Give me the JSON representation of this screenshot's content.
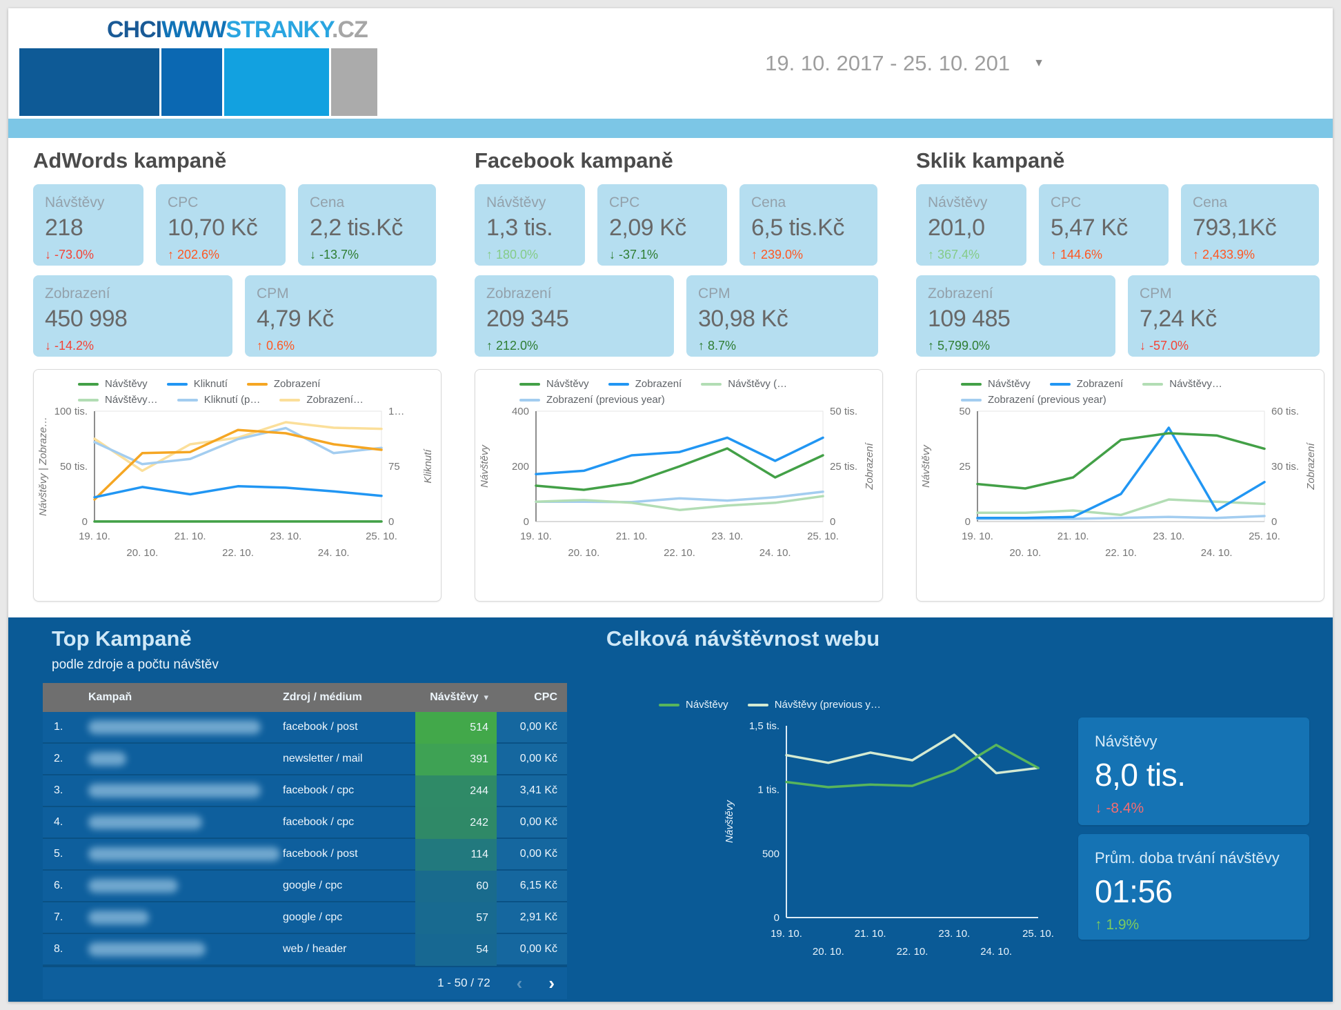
{
  "palette": {
    "band_blue": "#7cc6e6",
    "kpi_card_bg": "#b5def0",
    "dark_section_bg": "#0a5a96",
    "dark_card_bg": "#1573b4",
    "table_header_bg": "#6f6f6f",
    "table_row_bg": "#0e5f9d",
    "delta_red": "#f44336",
    "delta_orange": "#ff5722",
    "delta_green": "#2e7d32",
    "delta_lightgreen": "#85cb89",
    "delta_salmon": "#f26d72",
    "delta_limegreen": "#7ccb5f",
    "series_green": "#43a047",
    "series_blue": "#2196f3",
    "series_orange": "#f5a623",
    "series_lightgreen": "#b2ddb4",
    "series_lightblue": "#a3cdf0",
    "series_lightyellow": "#fbdf9a",
    "traffic_green": "#58b55c",
    "traffic_lightgreen": "#d4ead2"
  },
  "header": {
    "logo_segments": [
      {
        "text": "CHCI",
        "color": "#1a5a96"
      },
      {
        "text": "WWW",
        "color": "#1173b7"
      },
      {
        "text": "STRANKY",
        "color": "#2aa5e0"
      },
      {
        "text": ".CZ",
        "color": "#a6a6a6"
      }
    ],
    "color_blocks": [
      "#0e5a96",
      "#0b68b2",
      "#12a1e0",
      "#ababab"
    ],
    "date_range": "19. 10. 2017 - 25. 10. 201"
  },
  "sections": [
    {
      "title": "AdWords kampaně",
      "chart_id": "adwords_chart",
      "kpis": [
        {
          "label": "Návštěvy",
          "value": "218",
          "delta": "-73.0%",
          "dir": "down",
          "tone": "red"
        },
        {
          "label": "CPC",
          "value": "10,70 Kč",
          "delta": "202.6%",
          "dir": "up",
          "tone": "orange"
        },
        {
          "label": "Cena",
          "value": "2,2 tis.Kč",
          "delta": "-13.7%",
          "dir": "down",
          "tone": "green"
        },
        {
          "label": "Zobrazení",
          "value": "450 998",
          "delta": "-14.2%",
          "dir": "down",
          "tone": "red"
        },
        {
          "label": "CPM",
          "value": "4,79 Kč",
          "delta": "0.6%",
          "dir": "up",
          "tone": "orange"
        }
      ]
    },
    {
      "title": "Facebook kampaně",
      "chart_id": "facebook_chart",
      "kpis": [
        {
          "label": "Návštěvy",
          "value": "1,3 tis.",
          "delta": "180.0%",
          "dir": "up",
          "tone": "lightgreen"
        },
        {
          "label": "CPC",
          "value": "2,09 Kč",
          "delta": "-37.1%",
          "dir": "down",
          "tone": "green"
        },
        {
          "label": "Cena",
          "value": "6,5 tis.Kč",
          "delta": "239.0%",
          "dir": "up",
          "tone": "orange"
        },
        {
          "label": "Zobrazení",
          "value": "209 345",
          "delta": "212.0%",
          "dir": "up",
          "tone": "green"
        },
        {
          "label": "CPM",
          "value": "30,98 Kč",
          "delta": "8.7%",
          "dir": "up",
          "tone": "green"
        }
      ]
    },
    {
      "title": "Sklik kampaně",
      "chart_id": "sklik_chart",
      "kpis": [
        {
          "label": "Návštěvy",
          "value": "201,0",
          "delta": "367.4%",
          "dir": "up",
          "tone": "lightgreen"
        },
        {
          "label": "CPC",
          "value": "5,47 Kč",
          "delta": "144.6%",
          "dir": "up",
          "tone": "orange"
        },
        {
          "label": "Cena",
          "value": "793,1Kč",
          "delta": "2,433.9%",
          "dir": "up",
          "tone": "orange"
        },
        {
          "label": "Zobrazení",
          "value": "109 485",
          "delta": "5,799.0%",
          "dir": "up",
          "tone": "green"
        },
        {
          "label": "CPM",
          "value": "7,24 Kč",
          "delta": "-57.0%",
          "dir": "down",
          "tone": "red"
        }
      ]
    }
  ],
  "bottom": {
    "top_table": {
      "title": "Top Kampaně",
      "subtitle": "podle zdroje a počtu návštěv",
      "columns": [
        "Kampaň",
        "Zdroj / médium",
        "Návštěvy",
        "CPC"
      ],
      "rows": [
        {
          "rank": "1.",
          "campaign_redacted": true,
          "redacted_width": 250,
          "source": "facebook / post",
          "visits": "514",
          "visits_color": "#42a84a",
          "cpc": "0,00 Kč"
        },
        {
          "rank": "2.",
          "campaign_redacted": true,
          "redacted_width": 55,
          "source": "newsletter / mail",
          "visits": "391",
          "visits_color": "#3ea254",
          "cpc": "0,00 Kč"
        },
        {
          "rank": "3.",
          "campaign_redacted": true,
          "redacted_width": 250,
          "source": "facebook / cpc",
          "visits": "244",
          "visits_color": "#2f8a67",
          "cpc": "3,41 Kč"
        },
        {
          "rank": "4.",
          "campaign_redacted": true,
          "redacted_width": 165,
          "source": "facebook / cpc",
          "visits": "242",
          "visits_color": "#2f8967",
          "cpc": "0,00 Kč"
        },
        {
          "rank": "5.",
          "campaign_redacted": true,
          "redacted_width": 305,
          "source": "facebook / post",
          "visits": "114",
          "visits_color": "#22797e",
          "cpc": "0,00 Kč"
        },
        {
          "rank": "6.",
          "campaign_redacted": true,
          "redacted_width": 130,
          "source": "google / cpc",
          "visits": "60",
          "visits_color": "#196b8d",
          "cpc": "6,15 Kč"
        },
        {
          "rank": "7.",
          "campaign_redacted": true,
          "redacted_width": 88,
          "source": "google / cpc",
          "visits": "57",
          "visits_color": "#186a90",
          "cpc": "2,91 Kč"
        },
        {
          "rank": "8.",
          "campaign_redacted": true,
          "redacted_width": 170,
          "source": "web / header",
          "visits": "54",
          "visits_color": "#176892",
          "cpc": "0,00 Kč"
        }
      ],
      "pagination": "1 - 50 / 72"
    },
    "traffic": {
      "title": "Celková návštěvnost webu",
      "kpis": [
        {
          "label": "Návštěvy",
          "value": "8,0 tis.",
          "delta": "-8.4%",
          "dir": "down",
          "tone": "salmon"
        },
        {
          "label": "Prům. doba trvání návštěvy",
          "value": "01:56",
          "delta": "1.9%",
          "dir": "up",
          "tone": "limegreen"
        }
      ]
    }
  },
  "chart_data": [
    {
      "id": "adwords_chart",
      "type": "line",
      "x": [
        "19. 10.",
        "20. 10.",
        "21. 10.",
        "22. 10.",
        "23. 10.",
        "24. 10.",
        "25. 10."
      ],
      "y_left": {
        "label": "Návštěvy | Zobraze…",
        "ticks": [
          "0",
          "50 tis.",
          "100 tis."
        ],
        "min": 0,
        "max": 100000
      },
      "y_right": {
        "label": "Kliknutí",
        "ticks": [
          "0",
          "75",
          "1…"
        ],
        "min": 0,
        "max": 150
      },
      "series": [
        {
          "name": "Návštěvy",
          "color": "#43a047",
          "axis": "left",
          "values": [
            40,
            34,
            36,
            50,
            56,
            46,
            40
          ]
        },
        {
          "name": "Kliknutí",
          "color": "#2196f3",
          "axis": "right",
          "values": [
            33,
            47,
            37,
            48,
            46,
            41,
            35
          ]
        },
        {
          "name": "Zobrazení",
          "color": "#f5a623",
          "axis": "left",
          "values": [
            20000,
            62000,
            63000,
            83000,
            80000,
            70000,
            65000
          ]
        },
        {
          "name": "Návštěvy…",
          "color": "#b2ddb4",
          "axis": "left",
          "values": [
            30,
            26,
            28,
            38,
            42,
            36,
            30
          ]
        },
        {
          "name": "Kliknutí (p…",
          "color": "#a3cdf0",
          "axis": "right",
          "values": [
            108,
            78,
            85,
            112,
            127,
            93,
            100
          ]
        },
        {
          "name": "Zobrazení…",
          "color": "#fbdf9a",
          "axis": "left",
          "values": [
            75000,
            46000,
            70000,
            76000,
            90000,
            85000,
            84000
          ]
        }
      ]
    },
    {
      "id": "facebook_chart",
      "type": "line",
      "x": [
        "19. 10.",
        "20. 10.",
        "21. 10.",
        "22. 10.",
        "23. 10.",
        "24. 10.",
        "25. 10."
      ],
      "y_left": {
        "label": "Návštěvy",
        "ticks": [
          "0",
          "200",
          "400"
        ],
        "min": 0,
        "max": 400
      },
      "y_right": {
        "label": "Zobrazení",
        "ticks": [
          "0",
          "25 tis.",
          "50 tis."
        ],
        "min": 0,
        "max": 50000
      },
      "series": [
        {
          "name": "Návštěvy",
          "color": "#43a047",
          "axis": "left",
          "values": [
            130,
            115,
            140,
            200,
            265,
            160,
            240
          ]
        },
        {
          "name": "Zobrazení",
          "color": "#2196f3",
          "axis": "right",
          "values": [
            21500,
            23000,
            30000,
            31500,
            38000,
            27500,
            38000
          ]
        },
        {
          "name": "Návštěvy (…",
          "color": "#b2ddb4",
          "axis": "left",
          "values": [
            72,
            78,
            68,
            42,
            58,
            68,
            92
          ]
        },
        {
          "name": "Zobrazení (previous year)",
          "color": "#a3cdf0",
          "axis": "right",
          "values": [
            9000,
            9000,
            8800,
            10500,
            9500,
            11000,
            13500
          ]
        }
      ]
    },
    {
      "id": "sklik_chart",
      "type": "line",
      "x": [
        "19. 10.",
        "20. 10.",
        "21. 10.",
        "22. 10.",
        "23. 10.",
        "24. 10.",
        "25. 10."
      ],
      "y_left": {
        "label": "Návštěvy",
        "ticks": [
          "0",
          "25",
          "50"
        ],
        "min": 0,
        "max": 50
      },
      "y_right": {
        "label": "Zobrazení",
        "ticks": [
          "0",
          "30 tis.",
          "60 tis."
        ],
        "min": 0,
        "max": 60000
      },
      "series": [
        {
          "name": "Návštěvy",
          "color": "#43a047",
          "axis": "left",
          "values": [
            17,
            15,
            20,
            37,
            40,
            39,
            33
          ]
        },
        {
          "name": "Zobrazení",
          "color": "#2196f3",
          "axis": "right",
          "values": [
            2000,
            2000,
            2500,
            15000,
            51000,
            6000,
            21500
          ]
        },
        {
          "name": "Návštěvy…",
          "color": "#b2ddb4",
          "axis": "left",
          "values": [
            4,
            4,
            5,
            3,
            10,
            9,
            8
          ]
        },
        {
          "name": "Zobrazení (previous year)",
          "color": "#a3cdf0",
          "axis": "right",
          "values": [
            1500,
            1500,
            1500,
            2000,
            2500,
            2000,
            3000
          ]
        }
      ]
    },
    {
      "id": "traffic_chart",
      "type": "line",
      "x": [
        "19. 10.",
        "20. 10.",
        "21. 10.",
        "22. 10.",
        "23. 10.",
        "24. 10.",
        "25. 10."
      ],
      "y_left": {
        "label": "Návštěvy",
        "ticks": [
          "0",
          "500",
          "1 tis.",
          "1,5 tis."
        ],
        "min": 0,
        "max": 1500
      },
      "series": [
        {
          "name": "Návštěvy",
          "color": "#58b55c",
          "axis": "left",
          "values": [
            1060,
            1020,
            1040,
            1030,
            1150,
            1350,
            1170
          ]
        },
        {
          "name": "Návštěvy (previous y…",
          "color": "#d4ead2",
          "axis": "left",
          "values": [
            1270,
            1210,
            1290,
            1230,
            1430,
            1130,
            1170
          ]
        }
      ]
    }
  ]
}
